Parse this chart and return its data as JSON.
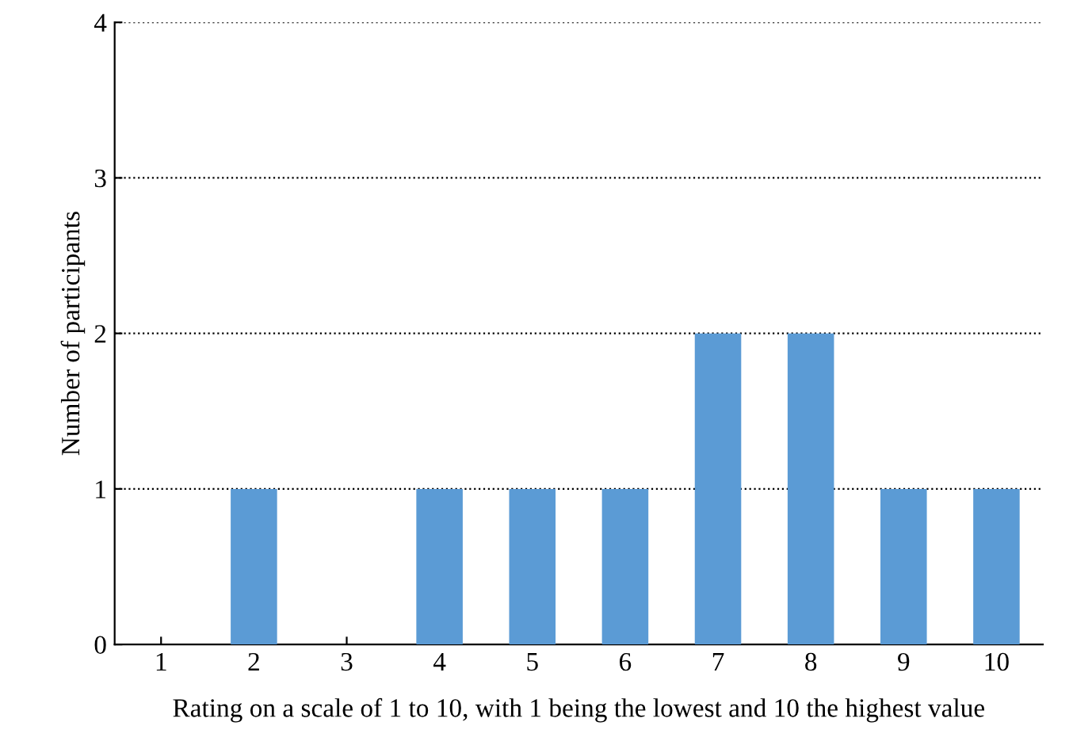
{
  "chart_data": {
    "type": "bar",
    "xlabel": "Rating on a scale of 1 to 10, with 1 being the lowest and 10 the highest value",
    "ylabel": "Number of participants",
    "categories": [
      "1",
      "2",
      "3",
      "4",
      "5",
      "6",
      "7",
      "8",
      "9",
      "10"
    ],
    "values": [
      0,
      1,
      0,
      1,
      1,
      1,
      2,
      2,
      1,
      1
    ],
    "color": "#5b9bd5",
    "ylim": [
      0,
      4
    ],
    "yticks": [
      0,
      1,
      2,
      3,
      4
    ],
    "grid": "y"
  }
}
